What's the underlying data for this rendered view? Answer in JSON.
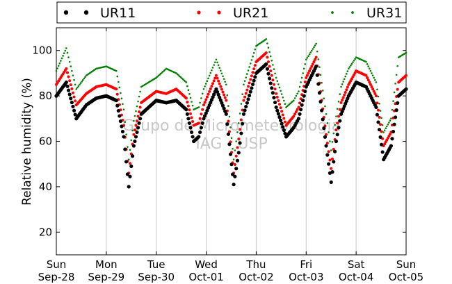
{
  "chart_data": {
    "type": "scatter",
    "title": "",
    "ylabel": "Relative humidity (%)",
    "xlabel": "",
    "ylim": [
      10,
      110
    ],
    "xlim": [
      0,
      7
    ],
    "yticks": [
      20,
      40,
      60,
      80,
      100
    ],
    "xticks": [
      {
        "value": 0,
        "day": "Sun",
        "date": "Sep-28"
      },
      {
        "value": 1,
        "day": "Mon",
        "date": "Sep-29"
      },
      {
        "value": 2,
        "day": "Tue",
        "date": "Sep-30"
      },
      {
        "value": 3,
        "day": "Wed",
        "date": "Oct-01"
      },
      {
        "value": 4,
        "day": "Thu",
        "date": "Oct-02"
      },
      {
        "value": 5,
        "day": "Fri",
        "date": "Oct-03"
      },
      {
        "value": 6,
        "day": "Sat",
        "date": "Oct-04"
      },
      {
        "value": 7,
        "day": "Sun",
        "date": "Oct-05"
      }
    ],
    "grid": "vertical",
    "legend_position": "top",
    "watermark": [
      "Grupo de Micrometeorologia",
      "IAG - USP"
    ],
    "x": [
      0.0,
      0.2,
      0.4,
      0.6,
      0.8,
      1.0,
      1.2,
      1.35,
      1.45,
      1.55,
      1.7,
      2.0,
      2.2,
      2.4,
      2.6,
      2.75,
      2.85,
      2.95,
      3.2,
      3.4,
      3.55,
      3.65,
      3.75,
      4.0,
      4.2,
      4.4,
      4.6,
      4.75,
      4.85,
      5.0,
      5.2,
      5.4,
      5.5,
      5.6,
      5.7,
      5.85,
      6.0,
      6.2,
      6.4,
      6.55,
      6.7,
      6.85,
      7.0
    ],
    "series": [
      {
        "name": "UR11",
        "color": "#000000",
        "marker": "dot-large",
        "values": [
          80,
          86,
          70,
          76,
          79,
          80,
          78,
          62,
          40,
          58,
          72,
          78,
          77,
          78,
          74,
          60,
          62,
          70,
          83,
          72,
          41,
          55,
          72,
          90,
          94,
          75,
          62,
          66,
          70,
          84,
          93,
          58,
          42,
          60,
          72,
          80,
          86,
          84,
          75,
          52,
          58,
          80,
          83
        ]
      },
      {
        "name": "UR21",
        "color": "#ff0000",
        "marker": "dot-small",
        "values": [
          85,
          92,
          76,
          81,
          84,
          85,
          83,
          67,
          46,
          63,
          77,
          82,
          81,
          83,
          79,
          67,
          68,
          76,
          89,
          78,
          46,
          61,
          78,
          95,
          99,
          81,
          67,
          71,
          75,
          88,
          97,
          63,
          48,
          65,
          77,
          85,
          91,
          89,
          80,
          58,
          64,
          86,
          89
        ]
      },
      {
        "name": "UR31",
        "color": "#008000",
        "marker": "dot-tiny",
        "values": [
          91,
          101,
          83,
          89,
          92,
          93,
          91,
          74,
          52,
          69,
          84,
          88,
          92,
          90,
          86,
          74,
          75,
          83,
          96,
          85,
          52,
          68,
          85,
          102,
          105,
          88,
          75,
          78,
          82,
          96,
          103,
          72,
          56,
          71,
          84,
          92,
          97,
          95,
          86,
          64,
          70,
          97,
          99
        ]
      }
    ]
  }
}
